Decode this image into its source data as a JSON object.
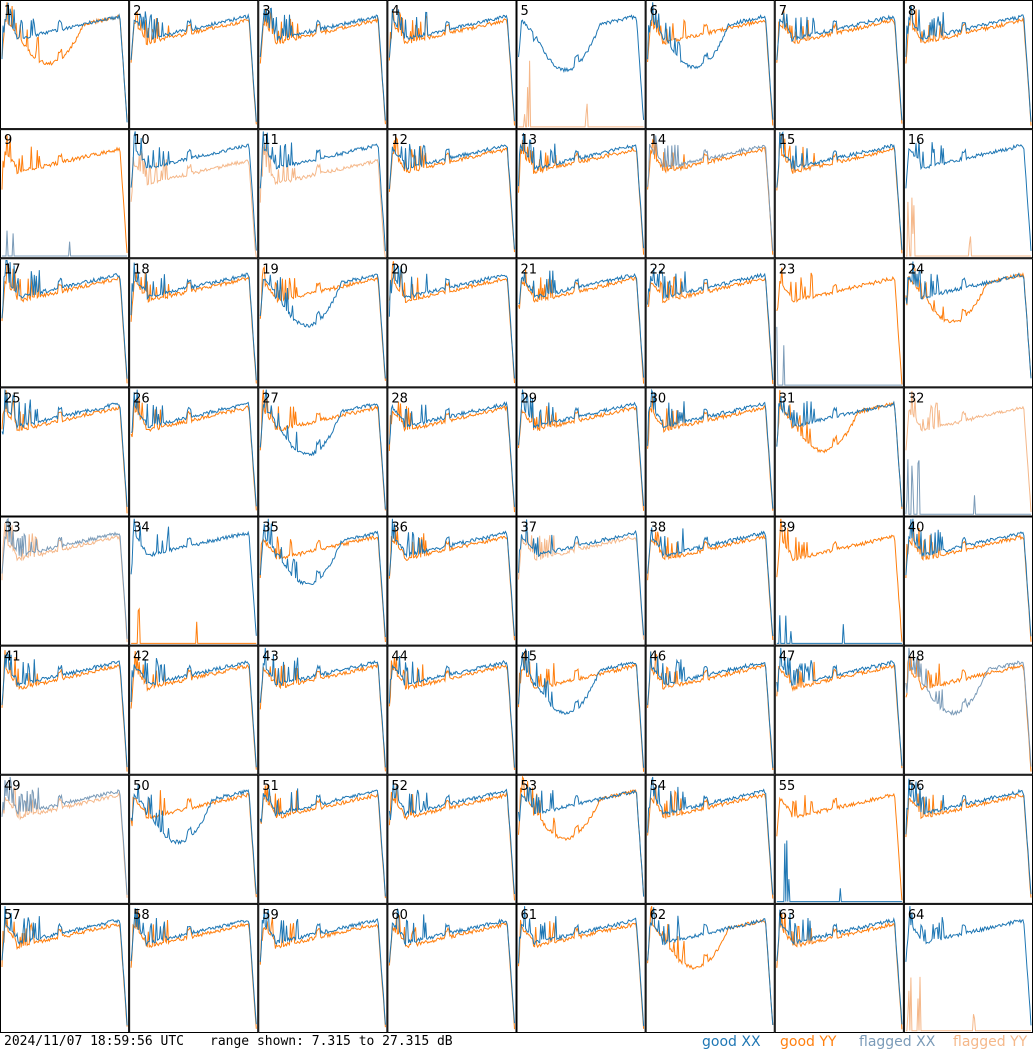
{
  "chart_data": {
    "type": "line",
    "grid": "8x8 small-multiple spectra, one panel per antenna tile",
    "y_range_db": [
      7.315,
      27.315
    ],
    "panels": [
      {
        "label": "1",
        "xx": "good",
        "yy": "good",
        "shape": "yy_dip"
      },
      {
        "label": "2",
        "xx": "good",
        "yy": "good",
        "shape": "normal"
      },
      {
        "label": "3",
        "xx": "good",
        "yy": "good",
        "shape": "normal"
      },
      {
        "label": "4",
        "xx": "good",
        "yy": "good",
        "shape": "normal"
      },
      {
        "label": "5",
        "xx": "good",
        "yy": "flagged",
        "shape": "xx_dip_yy_dead"
      },
      {
        "label": "6",
        "xx": "good",
        "yy": "good",
        "shape": "xx_dip"
      },
      {
        "label": "7",
        "xx": "good",
        "yy": "good",
        "shape": "normal"
      },
      {
        "label": "8",
        "xx": "good",
        "yy": "good",
        "shape": "normal"
      },
      {
        "label": "9",
        "xx": "flagged",
        "yy": "good",
        "shape": "xx_dead"
      },
      {
        "label": "10",
        "xx": "good",
        "yy": "flagged",
        "shape": "yy_low"
      },
      {
        "label": "11",
        "xx": "good",
        "yy": "flagged",
        "shape": "yy_low"
      },
      {
        "label": "12",
        "xx": "good",
        "yy": "good",
        "shape": "normal"
      },
      {
        "label": "13",
        "xx": "good",
        "yy": "good",
        "shape": "normal"
      },
      {
        "label": "14",
        "xx": "flagged",
        "yy": "good",
        "shape": "normal"
      },
      {
        "label": "15",
        "xx": "good",
        "yy": "good",
        "shape": "normal"
      },
      {
        "label": "16",
        "xx": "good",
        "yy": "flagged",
        "shape": "yy_dead"
      },
      {
        "label": "17",
        "xx": "good",
        "yy": "good",
        "shape": "normal"
      },
      {
        "label": "18",
        "xx": "good",
        "yy": "good",
        "shape": "normal"
      },
      {
        "label": "19",
        "xx": "good",
        "yy": "good",
        "shape": "xx_dip"
      },
      {
        "label": "20",
        "xx": "good",
        "yy": "good",
        "shape": "normal"
      },
      {
        "label": "21",
        "xx": "good",
        "yy": "good",
        "shape": "normal"
      },
      {
        "label": "22",
        "xx": "good",
        "yy": "good",
        "shape": "normal"
      },
      {
        "label": "23",
        "xx": "flagged",
        "yy": "good",
        "shape": "xx_dead"
      },
      {
        "label": "24",
        "xx": "good",
        "yy": "good",
        "shape": "yy_dip"
      },
      {
        "label": "25",
        "xx": "good",
        "yy": "good",
        "shape": "normal"
      },
      {
        "label": "26",
        "xx": "good",
        "yy": "good",
        "shape": "normal"
      },
      {
        "label": "27",
        "xx": "good",
        "yy": "good",
        "shape": "xx_dip"
      },
      {
        "label": "28",
        "xx": "good",
        "yy": "good",
        "shape": "normal"
      },
      {
        "label": "29",
        "xx": "good",
        "yy": "good",
        "shape": "normal"
      },
      {
        "label": "30",
        "xx": "good",
        "yy": "good",
        "shape": "normal"
      },
      {
        "label": "31",
        "xx": "good",
        "yy": "good",
        "shape": "yy_dip"
      },
      {
        "label": "32",
        "xx": "flagged",
        "yy": "flagged",
        "shape": "xx_dead"
      },
      {
        "label": "33",
        "xx": "flagged",
        "yy": "flagged",
        "shape": "normal"
      },
      {
        "label": "34",
        "xx": "good",
        "yy": "good",
        "shape": "yy_dead"
      },
      {
        "label": "35",
        "xx": "good",
        "yy": "good",
        "shape": "xx_dip"
      },
      {
        "label": "36",
        "xx": "good",
        "yy": "good",
        "shape": "normal"
      },
      {
        "label": "37",
        "xx": "good",
        "yy": "flagged",
        "shape": "normal"
      },
      {
        "label": "38",
        "xx": "good",
        "yy": "good",
        "shape": "normal"
      },
      {
        "label": "39",
        "xx": "good",
        "yy": "good",
        "shape": "xx_dead"
      },
      {
        "label": "40",
        "xx": "good",
        "yy": "good",
        "shape": "normal"
      },
      {
        "label": "41",
        "xx": "good",
        "yy": "good",
        "shape": "normal"
      },
      {
        "label": "42",
        "xx": "good",
        "yy": "good",
        "shape": "normal"
      },
      {
        "label": "43",
        "xx": "good",
        "yy": "good",
        "shape": "normal"
      },
      {
        "label": "44",
        "xx": "good",
        "yy": "good",
        "shape": "normal"
      },
      {
        "label": "45",
        "xx": "good",
        "yy": "good",
        "shape": "xx_dip"
      },
      {
        "label": "46",
        "xx": "good",
        "yy": "good",
        "shape": "normal"
      },
      {
        "label": "47",
        "xx": "good",
        "yy": "good",
        "shape": "normal"
      },
      {
        "label": "48",
        "xx": "flagged",
        "yy": "good",
        "shape": "xx_dip"
      },
      {
        "label": "49",
        "xx": "flagged",
        "yy": "flagged",
        "shape": "normal"
      },
      {
        "label": "50",
        "xx": "good",
        "yy": "good",
        "shape": "xx_dip"
      },
      {
        "label": "51",
        "xx": "good",
        "yy": "good",
        "shape": "normal"
      },
      {
        "label": "52",
        "xx": "good",
        "yy": "good",
        "shape": "normal"
      },
      {
        "label": "53",
        "xx": "good",
        "yy": "good",
        "shape": "yy_dip"
      },
      {
        "label": "54",
        "xx": "good",
        "yy": "good",
        "shape": "normal"
      },
      {
        "label": "55",
        "xx": "good",
        "yy": "good",
        "shape": "xx_dead"
      },
      {
        "label": "56",
        "xx": "good",
        "yy": "good",
        "shape": "normal"
      },
      {
        "label": "57",
        "xx": "good",
        "yy": "good",
        "shape": "normal"
      },
      {
        "label": "58",
        "xx": "good",
        "yy": "good",
        "shape": "normal"
      },
      {
        "label": "59",
        "xx": "good",
        "yy": "good",
        "shape": "normal"
      },
      {
        "label": "60",
        "xx": "good",
        "yy": "good",
        "shape": "normal"
      },
      {
        "label": "61",
        "xx": "good",
        "yy": "good",
        "shape": "normal"
      },
      {
        "label": "62",
        "xx": "good",
        "yy": "good",
        "shape": "yy_dip"
      },
      {
        "label": "63",
        "xx": "good",
        "yy": "good",
        "shape": "normal"
      },
      {
        "label": "64",
        "xx": "good",
        "yy": "flagged",
        "shape": "yy_dead"
      }
    ]
  },
  "colors": {
    "good_xx": "#1f77b4",
    "good_yy": "#ff7f0e",
    "flagged_xx": "#7b9bb8",
    "flagged_yy": "#f5b88a",
    "border": "#000000"
  },
  "footer": {
    "timestamp": "2024/11/07 18:59:56 UTC",
    "range_text": "range shown: 7.315 to 27.315 dB",
    "legend": {
      "good_xx": "good XX",
      "good_yy": "good YY",
      "flagged_xx": "flagged XX",
      "flagged_yy": "flagged YY"
    }
  }
}
